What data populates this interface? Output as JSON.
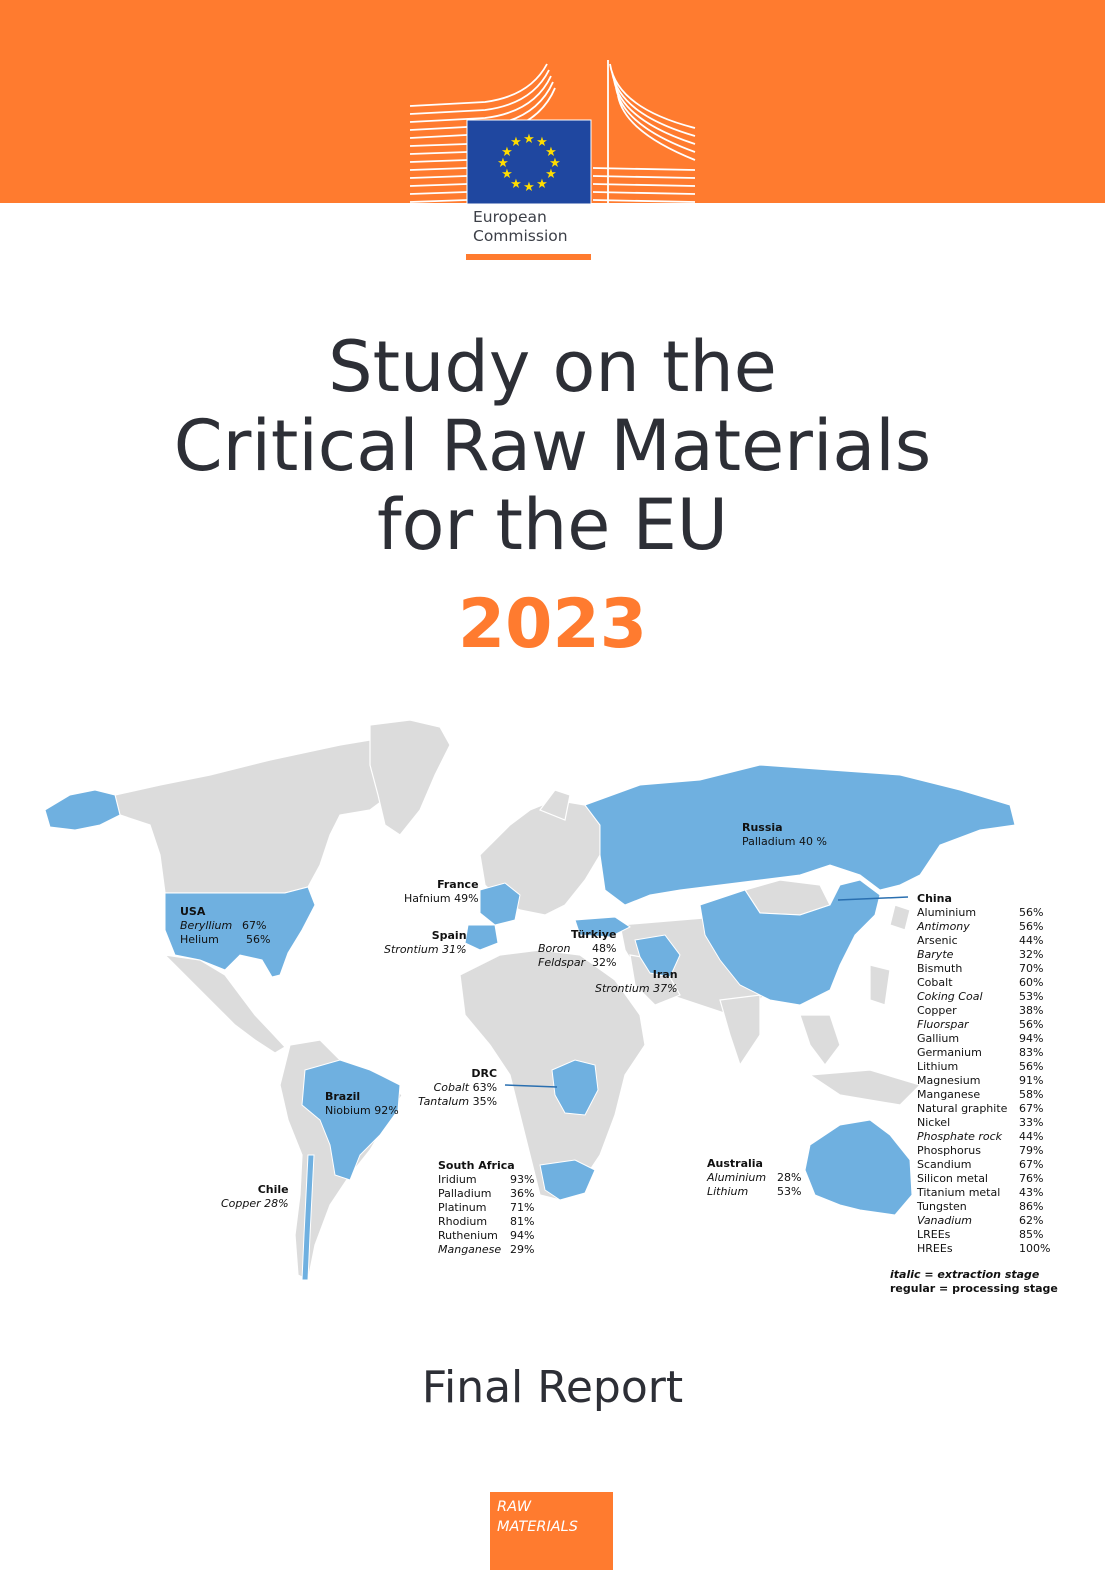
{
  "brand": {
    "line1": "European",
    "line2": "Commission",
    "accent_color": "#ff7b2f",
    "flag_color": "#1f47a0"
  },
  "title": {
    "line1": "Study on the",
    "line2": "Critical Raw Materials",
    "line3": "for the EU",
    "year": "2023"
  },
  "map": {
    "highlight_color": "#6fb0e0",
    "base_color": "#dcdcdc",
    "countries": {
      "usa": {
        "name": "USA",
        "items": [
          {
            "m": "Beryllium",
            "v": "67%",
            "stage": "extraction"
          },
          {
            "m": "Helium",
            "v": "56%",
            "stage": "processing"
          }
        ]
      },
      "france": {
        "name": "France",
        "item": "Hafnium 49%"
      },
      "spain": {
        "name": "Spain",
        "item": "Strontium 31%"
      },
      "turkiye": {
        "name": "Türkiye",
        "items": [
          {
            "m": "Boron",
            "v": "48%"
          },
          {
            "m": "Feldspar",
            "v": "32%"
          }
        ]
      },
      "iran": {
        "name": "Iran",
        "item": "Strontium 37%"
      },
      "russia": {
        "name": "Russia",
        "item": "Palladium 40 %"
      },
      "drc": {
        "name": "DRC",
        "items": [
          {
            "m": "Cobalt",
            "v": "63%"
          },
          {
            "m": "Tantalum",
            "v": "35%"
          }
        ]
      },
      "brazil": {
        "name": "Brazil",
        "item": "Niobium 92%"
      },
      "chile": {
        "name": "Chile",
        "item": "Copper  28%"
      },
      "south_africa": {
        "name": "South Africa",
        "items": [
          {
            "m": "Iridium",
            "v": "93%"
          },
          {
            "m": "Palladium",
            "v": "36%"
          },
          {
            "m": "Platinum",
            "v": "71%"
          },
          {
            "m": "Rhodium",
            "v": "81%"
          },
          {
            "m": "Ruthenium",
            "v": "94%"
          },
          {
            "m": "Manganese",
            "v": "29%"
          }
        ]
      },
      "australia": {
        "name": "Australia",
        "items": [
          {
            "m": "Aluminium",
            "v": "28%"
          },
          {
            "m": "Lithium",
            "v": "53%"
          }
        ]
      },
      "china": {
        "name": "China",
        "items": [
          {
            "m": "Aluminium",
            "v": "56%"
          },
          {
            "m": "Antimony",
            "v": "56%"
          },
          {
            "m": "Arsenic",
            "v": "44%"
          },
          {
            "m": "Baryte",
            "v": "32%"
          },
          {
            "m": "Bismuth",
            "v": "70%"
          },
          {
            "m": "Cobalt",
            "v": "60%"
          },
          {
            "m": "Coking Coal",
            "v": "53%"
          },
          {
            "m": "Copper",
            "v": "38%"
          },
          {
            "m": "Fluorspar",
            "v": "56%"
          },
          {
            "m": "Gallium",
            "v": "94%"
          },
          {
            "m": "Germanium",
            "v": "83%"
          },
          {
            "m": "Lithium",
            "v": "56%"
          },
          {
            "m": "Magnesium",
            "v": "91%"
          },
          {
            "m": "Manganese",
            "v": "58%"
          },
          {
            "m": "Natural graphite",
            "v": "67%"
          },
          {
            "m": "Nickel",
            "v": "33%"
          },
          {
            "m": "Phosphate rock",
            "v": "44%"
          },
          {
            "m": "Phosphorus",
            "v": "79%"
          },
          {
            "m": "Scandium",
            "v": "67%"
          },
          {
            "m": "Silicon metal",
            "v": "76%"
          },
          {
            "m": "Titanium metal",
            "v": "43%"
          },
          {
            "m": "Tungsten",
            "v": "86%"
          },
          {
            "m": "Vanadium",
            "v": "62%"
          },
          {
            "m": "LREEs",
            "v": "85%"
          },
          {
            "m": "HREEs",
            "v": "100%"
          }
        ]
      }
    },
    "legend": {
      "italic": "italic = extraction stage",
      "regular": "regular = processing stage"
    }
  },
  "report_type": "Final Report",
  "badge": {
    "line1": "RAW",
    "line2": "MATERIALS"
  }
}
